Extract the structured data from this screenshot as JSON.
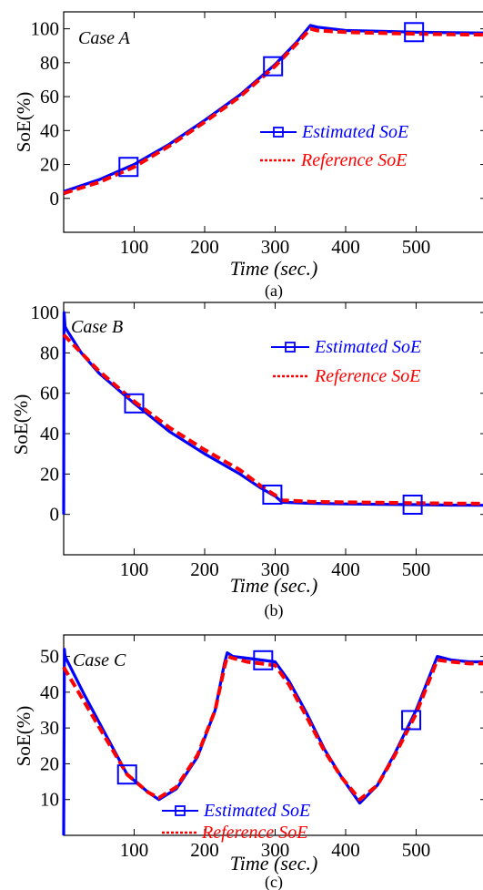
{
  "chart_data": [
    {
      "type": "line",
      "case_label": "Case A",
      "caption": "(a)",
      "xlabel": "Time (sec.)",
      "ylabel": "SoE(%)",
      "xlim": [
        0,
        600
      ],
      "ylim": [
        -20,
        110
      ],
      "xticks": [
        100,
        200,
        300,
        400,
        500
      ],
      "yticks": [
        0,
        20,
        40,
        60,
        80,
        100
      ],
      "legend_position": "middle-right",
      "series": [
        {
          "name": "Estimated SoE",
          "color": "#0000ff",
          "style": "solid",
          "marker": "square",
          "marker_x": [
            92,
            297,
            497
          ],
          "x": [
            0,
            50,
            100,
            150,
            200,
            250,
            300,
            330,
            350,
            360,
            400,
            450,
            500,
            550,
            600
          ],
          "y": [
            4,
            11,
            20,
            32,
            46,
            61,
            79,
            92,
            102,
            101,
            99,
            98.5,
            98,
            97.7,
            97.5
          ]
        },
        {
          "name": "Reference SoE",
          "color": "#ff0000",
          "style": "dashed",
          "x": [
            0,
            50,
            100,
            150,
            200,
            250,
            300,
            330,
            350,
            360,
            400,
            450,
            500,
            550,
            600
          ],
          "y": [
            3,
            9.5,
            18.5,
            31,
            45,
            60,
            78,
            91,
            100,
            99,
            98,
            97.5,
            97,
            96.7,
            96.5
          ]
        }
      ]
    },
    {
      "type": "line",
      "case_label": "Case B",
      "caption": "(b)",
      "xlabel": "Time (sec.)",
      "ylabel": "SoE(%)",
      "xlim": [
        0,
        600
      ],
      "ylim": [
        -20,
        105
      ],
      "xticks": [
        100,
        200,
        300,
        400,
        500
      ],
      "yticks": [
        0,
        20,
        40,
        60,
        80,
        100
      ],
      "legend_position": "top-right",
      "series": [
        {
          "name": "Estimated SoE",
          "color": "#0000ff",
          "style": "solid",
          "marker": "square",
          "marker_x": [
            100,
            296,
            495
          ],
          "x": [
            0,
            0.5,
            1,
            2,
            5,
            25,
            50,
            100,
            150,
            200,
            250,
            280,
            300,
            310,
            350,
            400,
            450,
            500,
            550,
            600
          ],
          "y": [
            0,
            100,
            98,
            93,
            91,
            80,
            70,
            55,
            41,
            30,
            20,
            13,
            9,
            6,
            5.5,
            5.2,
            5,
            4.8,
            4.6,
            4.5
          ]
        },
        {
          "name": "Reference SoE",
          "color": "#ff0000",
          "style": "dashed",
          "x": [
            0,
            25,
            50,
            100,
            150,
            200,
            250,
            280,
            300,
            310,
            350,
            400,
            450,
            500,
            550,
            600
          ],
          "y": [
            89,
            80,
            71,
            56,
            43,
            32,
            22,
            14,
            9.5,
            7,
            6.3,
            6,
            5.8,
            5.6,
            5.4,
            5.3
          ]
        }
      ]
    },
    {
      "type": "line",
      "case_label": "Case C",
      "caption": "(c)",
      "xlabel": "Time (sec.)",
      "ylabel": "SoE(%)",
      "xlim": [
        0,
        600
      ],
      "ylim": [
        0,
        56
      ],
      "xticks": [
        100,
        200,
        300,
        400,
        500
      ],
      "yticks": [
        10,
        20,
        30,
        40,
        50
      ],
      "legend_position": "bottom-center",
      "series": [
        {
          "name": "Estimated SoE",
          "color": "#0000ff",
          "style": "solid",
          "marker": "square",
          "marker_x": [
            90,
            283,
            493
          ],
          "x": [
            0,
            1,
            2,
            30,
            60,
            90,
            120,
            135,
            160,
            190,
            215,
            228,
            232,
            240,
            260,
            280,
            300,
            320,
            345,
            370,
            395,
            420,
            445,
            470,
            500,
            520,
            530,
            550,
            575,
            600
          ],
          "y": [
            0,
            52,
            50,
            39,
            28,
            17,
            12,
            10,
            13,
            22,
            35,
            48,
            51,
            50,
            49.5,
            49,
            48.5,
            43,
            34,
            24,
            16,
            9,
            14,
            23,
            35,
            45,
            50,
            49,
            48.5,
            48.5
          ]
        },
        {
          "name": "Reference SoE",
          "color": "#ff0000",
          "style": "dashed",
          "x": [
            0,
            30,
            60,
            90,
            120,
            135,
            160,
            190,
            215,
            228,
            232,
            240,
            260,
            280,
            300,
            320,
            345,
            370,
            395,
            420,
            445,
            470,
            500,
            520,
            530,
            550,
            575,
            600
          ],
          "y": [
            47,
            37,
            27,
            17,
            12,
            10.5,
            13.5,
            22.5,
            35,
            47,
            50,
            49.5,
            48.5,
            48,
            47.5,
            42,
            33,
            23.5,
            16,
            10,
            14,
            22.5,
            34,
            44,
            49,
            48.5,
            48,
            48
          ]
        }
      ]
    }
  ]
}
